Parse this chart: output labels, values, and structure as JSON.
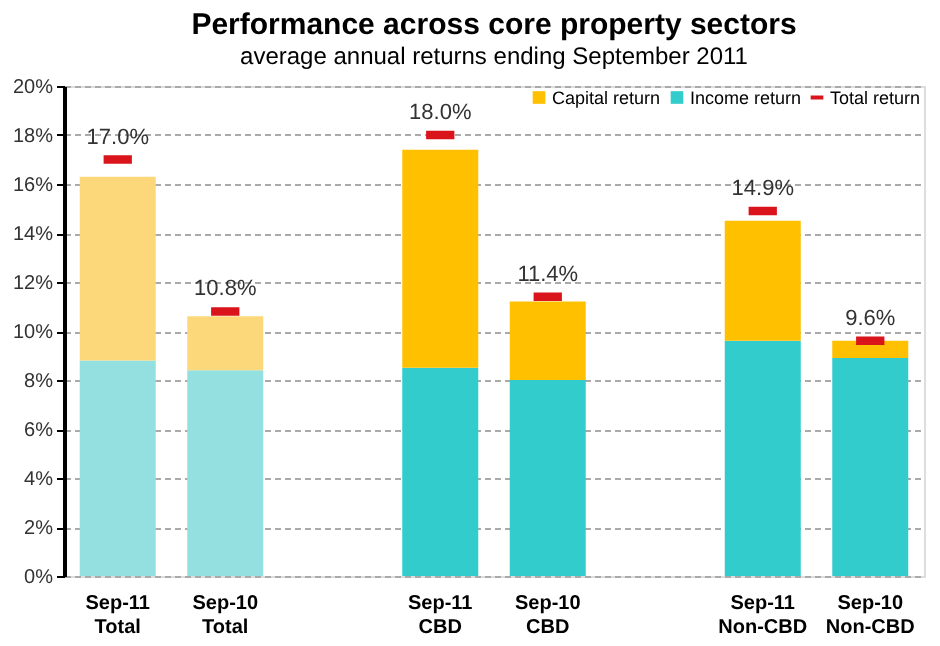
{
  "chart_data": {
    "type": "bar",
    "stacked": true,
    "title": "Performance across core property sectors",
    "subtitle": "average annual returns ending September 2011",
    "categories": [
      "Sep-11\nTotal",
      "Sep-10\nTotal",
      null,
      "Sep-11\nCBD",
      "Sep-10\nCBD",
      null,
      "Sep-11\nNon-CBD",
      "Sep-10\nNon-CBD"
    ],
    "series": [
      {
        "name": "Income return",
        "color": "#33cccc",
        "colors": [
          "#94e0e0",
          "#94e0e0",
          null,
          "#33cccc",
          "#33cccc",
          null,
          "#33cccc",
          "#33cccc"
        ],
        "values": [
          8.8,
          8.4,
          null,
          8.5,
          8.0,
          null,
          9.6,
          8.9
        ]
      },
      {
        "name": "Capital return",
        "color": "#ffc000",
        "colors": [
          "#fdd87a",
          "#fdd87a",
          null,
          "#ffc000",
          "#ffc000",
          null,
          "#ffc000",
          "#ffc000"
        ],
        "values": [
          7.5,
          2.2,
          null,
          8.9,
          3.2,
          null,
          4.9,
          0.7
        ]
      },
      {
        "name": "Total return",
        "type": "scatter",
        "color": "#d9141b",
        "values": [
          17.0,
          10.8,
          null,
          18.0,
          11.4,
          null,
          14.9,
          9.6
        ],
        "value_labels": [
          "17.0%",
          "10.8%",
          null,
          "18.0%",
          "11.4%",
          null,
          "14.9%",
          "9.6%"
        ]
      }
    ],
    "ylim": [
      0,
      20
    ],
    "yticks": [
      {
        "value": 0,
        "label": "0%"
      },
      {
        "value": 2,
        "label": "2%"
      },
      {
        "value": 4,
        "label": "4%"
      },
      {
        "value": 6,
        "label": "6%"
      },
      {
        "value": 8,
        "label": "8%"
      },
      {
        "value": 10,
        "label": "10%"
      },
      {
        "value": 12,
        "label": "12%"
      },
      {
        "value": 14,
        "label": "14%"
      },
      {
        "value": 16,
        "label": "16%"
      },
      {
        "value": 18,
        "label": "18%"
      },
      {
        "value": 20,
        "label": "20%"
      }
    ],
    "grid": "y",
    "legend": "top right"
  }
}
